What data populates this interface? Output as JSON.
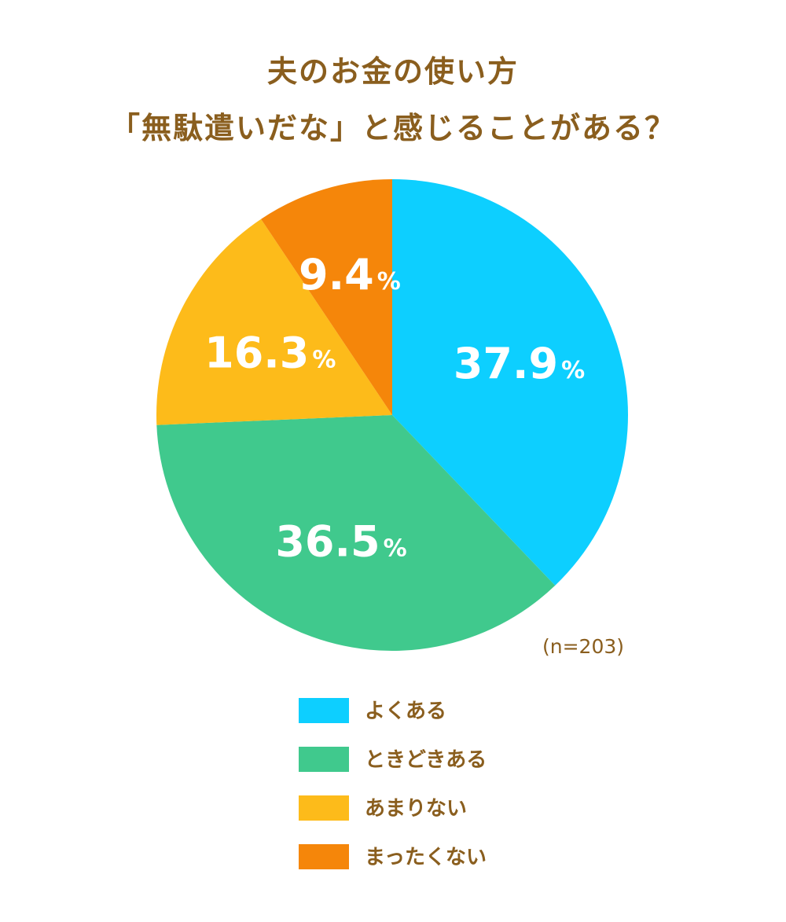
{
  "chart_data": {
    "type": "pie",
    "title": [
      "夫のお金の使い方",
      "「無駄遣いだな」と感じることがある？"
    ],
    "note": "(n=203)",
    "legend_position": "bottom",
    "slices": [
      {
        "name": "よくある",
        "value": 37.9,
        "label": "37.9",
        "unit": "%",
        "color": "#0dcfff"
      },
      {
        "name": "ときどきある",
        "value": 36.5,
        "label": "36.5",
        "unit": "%",
        "color": "#40c98d"
      },
      {
        "name": "あまりない",
        "value": 16.3,
        "label": "16.3",
        "unit": "%",
        "color": "#fdbb1a"
      },
      {
        "name": "まったくない",
        "value": 9.4,
        "label": "9.4",
        "unit": "%",
        "color": "#f5860a"
      }
    ]
  }
}
